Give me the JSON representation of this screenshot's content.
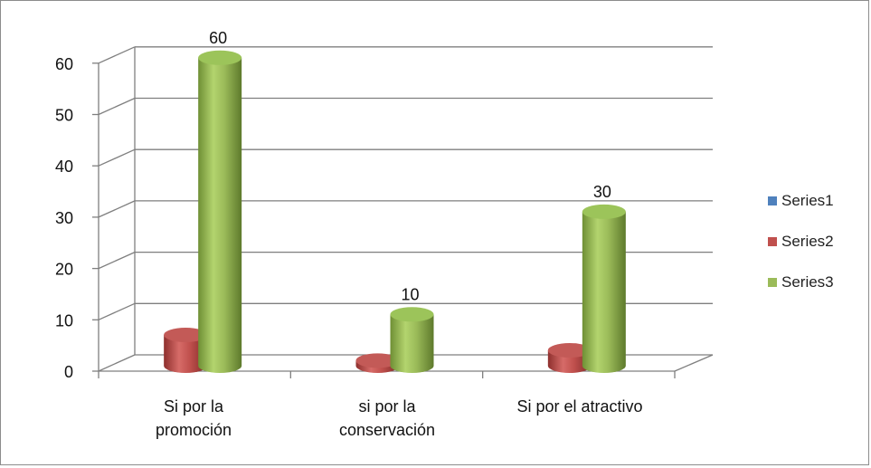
{
  "chart_data": {
    "type": "bar",
    "subtype": "3d-cylinder",
    "categories": [
      "Si por la promoción",
      "si por la conservación",
      "Si por el atractivo"
    ],
    "category_label_lines": [
      [
        "Si por la",
        "promoción"
      ],
      [
        "si por la",
        "conservación"
      ],
      [
        "Si por el atractivo"
      ]
    ],
    "series": [
      {
        "name": "Series1",
        "color": "#4f81bd",
        "values": [
          0,
          0,
          0
        ]
      },
      {
        "name": "Series2",
        "color": "#c0504d",
        "values": [
          6,
          1,
          3
        ]
      },
      {
        "name": "Series3",
        "color": "#9bbb59",
        "values": [
          60,
          10,
          30
        ]
      }
    ],
    "data_labels": [
      {
        "series": "Series3",
        "category": 0,
        "text": "60"
      },
      {
        "series": "Series3",
        "category": 1,
        "text": "10"
      },
      {
        "series": "Series3",
        "category": 2,
        "text": "30"
      }
    ],
    "y_ticks": [
      "0",
      "10",
      "20",
      "30",
      "40",
      "50",
      "60"
    ],
    "ylim": [
      0,
      60
    ],
    "grid": true,
    "legend_position": "right"
  }
}
